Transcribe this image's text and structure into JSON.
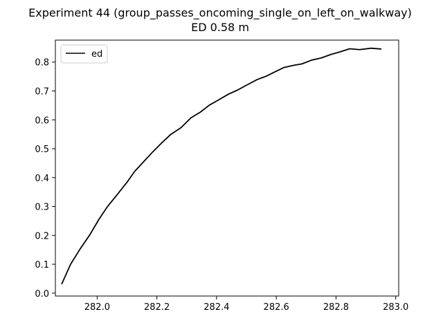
{
  "chart_data": {
    "type": "line",
    "title": "Experiment 44 (group_passes_oncoming_single_on_left_on_walkway)",
    "subtitle": "ED 0.58 m",
    "xlabel": "",
    "ylabel": "",
    "xlim": [
      281.86,
      283.01
    ],
    "ylim": [
      -0.01,
      0.876
    ],
    "x_ticks": [
      282.0,
      282.2,
      282.4,
      282.6,
      282.8,
      283.0
    ],
    "x_tick_labels": [
      "282.0",
      "282.2",
      "282.4",
      "282.6",
      "282.8",
      "283.0"
    ],
    "y_ticks": [
      0.0,
      0.1,
      0.2,
      0.3,
      0.4,
      0.5,
      0.6,
      0.7,
      0.8
    ],
    "y_tick_labels": [
      "0.0",
      "0.1",
      "0.2",
      "0.3",
      "0.4",
      "0.5",
      "0.6",
      "0.7",
      "0.8"
    ],
    "grid": false,
    "legend": "top-left",
    "series": [
      {
        "name": "ed",
        "color": "#000000",
        "x": [
          281.881,
          281.911,
          281.941,
          281.976,
          282.005,
          282.034,
          282.067,
          282.1,
          282.126,
          282.152,
          282.187,
          282.215,
          282.246,
          282.281,
          282.314,
          282.346,
          282.376,
          282.405,
          282.44,
          282.47,
          282.502,
          282.537,
          282.566,
          282.597,
          282.625,
          282.659,
          282.687,
          282.719,
          282.75,
          282.782,
          282.815,
          282.846,
          282.879,
          282.918,
          282.952
        ],
        "y": [
          0.031,
          0.1,
          0.15,
          0.203,
          0.254,
          0.299,
          0.341,
          0.384,
          0.422,
          0.451,
          0.49,
          0.519,
          0.549,
          0.573,
          0.607,
          0.627,
          0.651,
          0.668,
          0.689,
          0.703,
          0.721,
          0.74,
          0.751,
          0.767,
          0.781,
          0.789,
          0.794,
          0.807,
          0.814,
          0.826,
          0.836,
          0.846,
          0.843,
          0.848,
          0.845
        ]
      }
    ]
  }
}
